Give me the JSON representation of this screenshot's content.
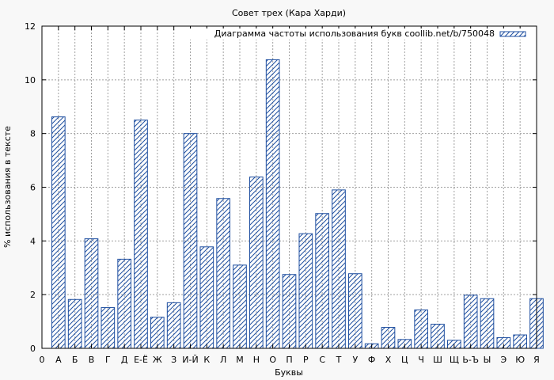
{
  "chart_data": {
    "type": "bar",
    "title": "Совет трех (Кара Харди)",
    "xlabel": "Буквы",
    "ylabel": "% использования в тексте",
    "legend": "Диаграмма частоты использования букв coollib.net/b/750048",
    "legend_position": "top-right",
    "grid": true,
    "ylim": [
      0,
      12
    ],
    "yticks": [
      0,
      2,
      4,
      6,
      8,
      10,
      12
    ],
    "x_origin_label": "0",
    "categories": [
      "А",
      "Б",
      "В",
      "Г",
      "Д",
      "Е-Ё",
      "Ж",
      "З",
      "И-Й",
      "К",
      "Л",
      "М",
      "Н",
      "О",
      "П",
      "Р",
      "С",
      "Т",
      "У",
      "Ф",
      "Х",
      "Ц",
      "Ч",
      "Ш",
      "Щ",
      "Ь-Ъ",
      "Ы",
      "Э",
      "Ю",
      "Я"
    ],
    "values": [
      8.62,
      1.82,
      4.08,
      1.52,
      3.32,
      8.5,
      1.16,
      1.7,
      8.0,
      3.78,
      5.58,
      3.1,
      6.38,
      10.75,
      2.75,
      4.27,
      5.02,
      5.9,
      2.78,
      0.17,
      0.78,
      0.33,
      1.43,
      0.9,
      0.3,
      1.98,
      1.85,
      0.4,
      0.5,
      1.85
    ],
    "bar_color": "#1f4fa0"
  }
}
